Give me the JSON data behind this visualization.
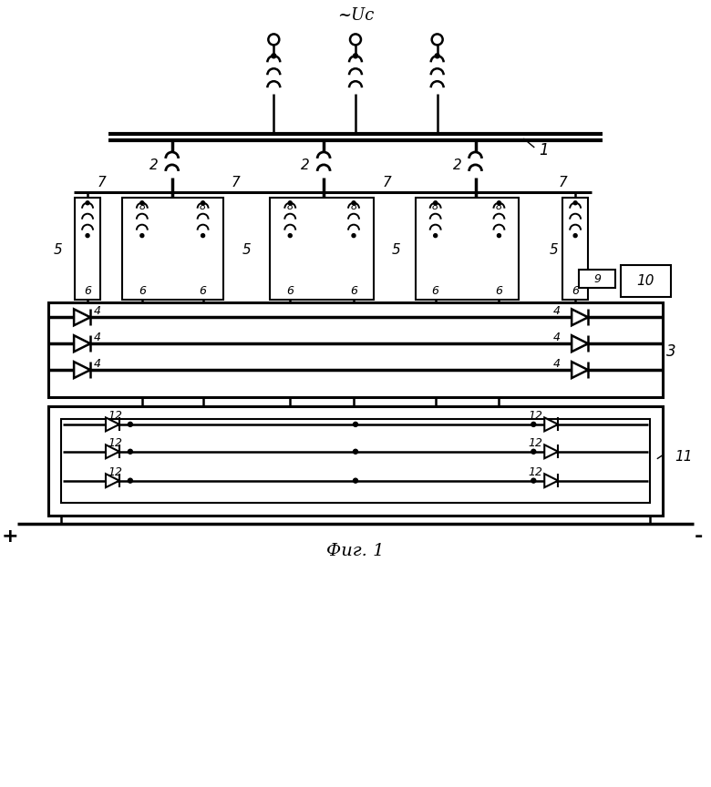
{
  "bg": "#ffffff",
  "fig_w": 7.8,
  "fig_h": 8.64,
  "title": "~Uc",
  "fig_label": "Фиг. 1"
}
